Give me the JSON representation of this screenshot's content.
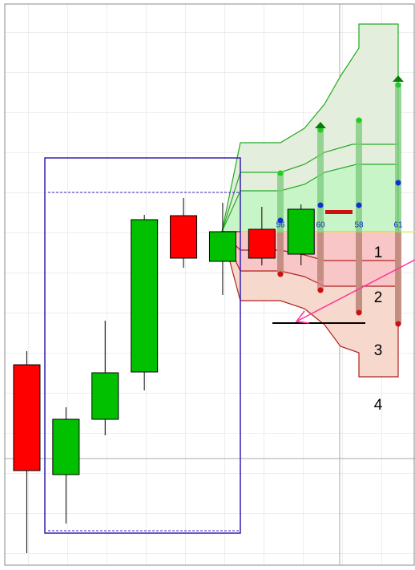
{
  "chart_data": {
    "type": "candlestick",
    "ylim": [
      6,
      706
    ],
    "up_color": "#00c000",
    "down_color": "#ff0000",
    "candles": [
      {
        "open": 256,
        "close": 124,
        "high": 273,
        "low": 21
      },
      {
        "open": 119,
        "close": 188,
        "high": 203,
        "low": 58
      },
      {
        "open": 188,
        "close": 246,
        "high": 311,
        "low": 168
      },
      {
        "open": 247,
        "close": 437,
        "high": 443,
        "low": 224
      },
      {
        "open": 442,
        "close": 389,
        "high": 464,
        "low": 377
      },
      {
        "open": 385,
        "close": 422,
        "high": 458,
        "low": 343
      },
      {
        "open": 425,
        "close": 389,
        "high": 453,
        "low": 380
      },
      {
        "open": 394,
        "close": 450,
        "high": 456,
        "low": 380
      }
    ],
    "bar_labels": [
      "56",
      "60",
      "58",
      "61"
    ],
    "zone_labels": [
      "1",
      "2",
      "3",
      "4"
    ]
  }
}
